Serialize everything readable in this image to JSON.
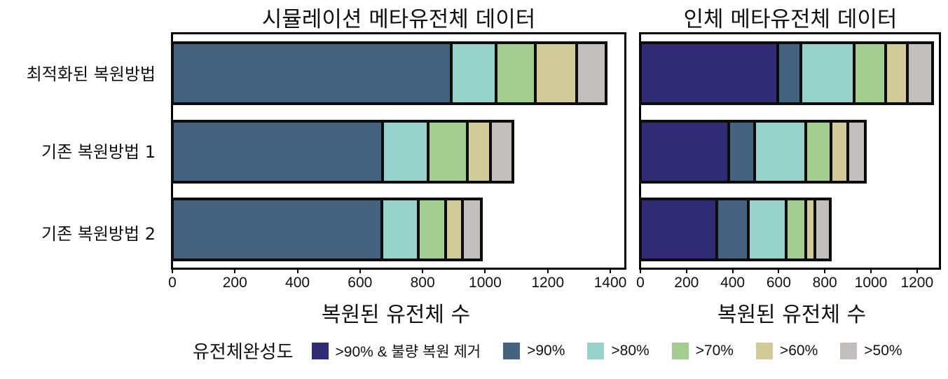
{
  "chart_data": [
    {
      "type": "bar",
      "orientation": "horizontal",
      "stacked": true,
      "title": "시뮬레이션 메타유전체 데이터",
      "xlabel": "복원된 유전체 수",
      "ylabel": "",
      "xlim": [
        0,
        1450
      ],
      "xticks": [
        0,
        200,
        400,
        600,
        800,
        1000,
        1200,
        1400
      ],
      "categories": [
        "최적화된 복원방법",
        "기존 복원방법 1",
        "기존 복원방법  2"
      ],
      "series": [
        {
          "name": ">90% & 불량 복원 제거",
          "color": "#312a74",
          "values": [
            0,
            0,
            0
          ]
        },
        {
          "name": ">90%",
          "color": "#45627f",
          "values": [
            894,
            674,
            674
          ]
        },
        {
          "name": ">80%",
          "color": "#97d3ca",
          "values": [
            145,
            148,
            117
          ]
        },
        {
          "name": ">70%",
          "color": "#a4cd91",
          "values": [
            126,
            126,
            87
          ]
        },
        {
          "name": ">60%",
          "color": "#d0cb98",
          "values": [
            132,
            73,
            54
          ]
        },
        {
          "name": ">50%",
          "color": "#c0bfbd",
          "values": [
            85,
            63,
            51
          ]
        }
      ],
      "totals": [
        1382,
        1084,
        983
      ],
      "grid": false,
      "legend_position": "bottom"
    },
    {
      "type": "bar",
      "orientation": "horizontal",
      "stacked": true,
      "title": "인체 메타유전체 데이터",
      "xlabel": "복원된 유전체 수",
      "ylabel": "",
      "xlim": [
        0,
        1300
      ],
      "xticks": [
        0,
        200,
        400,
        600,
        800,
        1000,
        1200
      ],
      "categories": [
        "최적화된 복원방법",
        "기존 복원방법 1",
        "기존 복원방법  2"
      ],
      "series": [
        {
          "name": ">90% & 불량 복원 제거",
          "color": "#312a74",
          "values": [
            599,
            386,
            334
          ]
        },
        {
          "name": ">90%",
          "color": "#45627f",
          "values": [
            100,
            112,
            137
          ]
        },
        {
          "name": ">80%",
          "color": "#97d3ca",
          "values": [
            234,
            225,
            167
          ]
        },
        {
          "name": ">70%",
          "color": "#a4cd91",
          "values": [
            137,
            110,
            85
          ]
        },
        {
          "name": ">60%",
          "color": "#d0cb98",
          "values": [
            94,
            73,
            40
          ]
        },
        {
          "name": ">50%",
          "color": "#c0bfbd",
          "values": [
            97,
            64,
            55
          ]
        }
      ],
      "totals": [
        1261,
        970,
        818
      ],
      "grid": false,
      "legend_position": "bottom"
    }
  ],
  "titles": {
    "left": "시뮬레이션 메타유전체 데이터",
    "right": "인체 메타유전체 데이터"
  },
  "ylabels": [
    "최적화된 복원방법",
    "기존 복원방법 1",
    "기존 복원방법  2"
  ],
  "xlabels": {
    "left": "복원된 유전체 수",
    "right": "복원된 유전체 수"
  },
  "xticks": {
    "left": [
      "0",
      "200",
      "400",
      "600",
      "800",
      "1000",
      "1200",
      "1400"
    ],
    "right": [
      "0",
      "200",
      "400",
      "600",
      "800",
      "1000",
      "1200"
    ]
  },
  "legend": {
    "title": "유전체완성도",
    "items": [
      {
        "label": ">90% & 불량 복원 제거",
        "color": "#312a74"
      },
      {
        "label": ">90%",
        "color": "#45627f"
      },
      {
        "label": ">80%",
        "color": "#97d3ca"
      },
      {
        "label": ">70%",
        "color": "#a4cd91"
      },
      {
        "label": ">60%",
        "color": "#d0cb98"
      },
      {
        "label": ">50%",
        "color": "#c0bfbd"
      }
    ]
  }
}
